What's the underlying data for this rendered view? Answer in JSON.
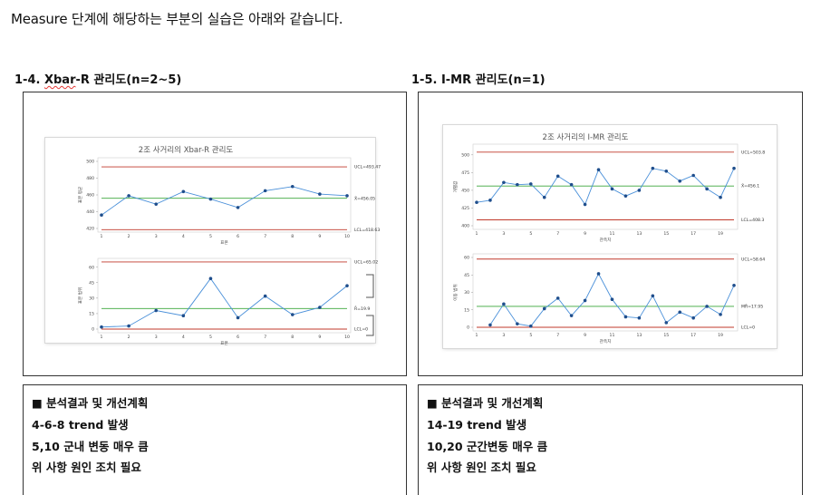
{
  "intro": "Measure 단계에 해당하는 부분의 실습은 아래와 같습니다.",
  "left": {
    "heading_num": "1-4.",
    "heading_sq": "Xbar",
    "heading_rest": "-R 관리도(n=2~5)",
    "chart_title": "2조 사거리의 Xbar-R 관리도",
    "analysis": [
      "■ 분석결과 및 개선계획",
      "4-6-8 trend 발생",
      "5,10 군내 변동 매우 큼",
      "위 사항 원인 조치 필요"
    ]
  },
  "right": {
    "heading": "1-5. I-MR 관리도(n=1)",
    "chart_title": "2조 사거리의 I-MR 관리도",
    "analysis": [
      "■ 분석결과 및 개선계획",
      "14-19 trend 발생",
      "10,20 군간변동 매우 큼",
      "위 사항 원인 조치 필요"
    ]
  },
  "colors": {
    "limit": "#c0392b",
    "center": "#3aa63a",
    "series": "#4a90d9",
    "point": "#1f4e8c"
  },
  "chart_data": [
    {
      "type": "line",
      "name": "Xbar",
      "x": [
        1,
        2,
        3,
        4,
        5,
        6,
        7,
        8,
        9,
        10
      ],
      "values": [
        436,
        459,
        449,
        464,
        455,
        445,
        465,
        470,
        461,
        459
      ],
      "ylim": [
        420,
        500
      ],
      "yticks": [
        420,
        440,
        460,
        480,
        500
      ],
      "xticks": [
        1,
        2,
        3,
        4,
        5,
        6,
        7,
        8,
        9,
        10
      ],
      "limits": {
        "UCL": 493.47,
        "center": 456.05,
        "LCL": 418.63
      },
      "labels": {
        "UCL": "UCL=493.47",
        "center": "X̄=456.05",
        "LCL": "LCL=418.63"
      },
      "xlabel": "표본",
      "ylabel": "표본 평균"
    },
    {
      "type": "line",
      "name": "R",
      "x": [
        1,
        2,
        3,
        4,
        5,
        6,
        7,
        8,
        9,
        10
      ],
      "values": [
        2,
        3,
        18,
        13,
        49,
        11,
        32,
        14,
        21,
        42
      ],
      "ylim": [
        0,
        65
      ],
      "yticks": [
        0,
        15,
        30,
        45,
        60
      ],
      "xticks": [
        1,
        2,
        3,
        4,
        5,
        6,
        7,
        8,
        9,
        10
      ],
      "limits": {
        "UCL": 65.02,
        "center": 19.9,
        "LCL": 0
      },
      "labels": {
        "UCL": "UCL=65.02",
        "center": "R̄=19.9",
        "LCL": "LCL=0"
      },
      "xlabel": "표본",
      "ylabel": "표본 범위"
    },
    {
      "type": "line",
      "name": "I",
      "x": [
        1,
        2,
        3,
        4,
        5,
        6,
        7,
        8,
        9,
        10,
        11,
        12,
        13,
        14,
        15,
        16,
        17,
        18,
        19,
        20
      ],
      "values": [
        433,
        436,
        461,
        458,
        459,
        440,
        470,
        458,
        430,
        479,
        452,
        442,
        450,
        481,
        477,
        463,
        471,
        452,
        440,
        481
      ],
      "ylim": [
        400,
        510
      ],
      "yticks": [
        400,
        425,
        450,
        475,
        500
      ],
      "xticks": [
        1,
        3,
        5,
        7,
        9,
        11,
        13,
        15,
        17,
        19
      ],
      "limits": {
        "UCL": 503.8,
        "center": 456.1,
        "LCL": 408.3
      },
      "labels": {
        "UCL": "UCL=503.8",
        "center": "X̄=456.1",
        "LCL": "LCL=408.3"
      },
      "xlabel": "관측치",
      "ylabel": "개별값"
    },
    {
      "type": "line",
      "name": "MR",
      "x": [
        2,
        3,
        4,
        5,
        6,
        7,
        8,
        9,
        10,
        11,
        12,
        13,
        14,
        15,
        16,
        17,
        18,
        19,
        20
      ],
      "values": [
        2,
        20,
        3,
        1,
        16,
        25,
        10,
        23,
        46,
        24,
        9,
        8,
        27,
        4,
        13,
        8,
        18,
        11,
        36
      ],
      "ylim": [
        0,
        60
      ],
      "yticks": [
        0,
        15,
        30,
        45,
        60
      ],
      "xticks": [
        1,
        3,
        5,
        7,
        9,
        11,
        13,
        15,
        17,
        19
      ],
      "limits": {
        "UCL": 58.64,
        "center": 17.95,
        "LCL": 0
      },
      "labels": {
        "UCL": "UCL=58.64",
        "center": "MR̄=17.95",
        "LCL": "LCL=0"
      },
      "xlabel": "관측치",
      "ylabel": "이동 범위"
    }
  ]
}
